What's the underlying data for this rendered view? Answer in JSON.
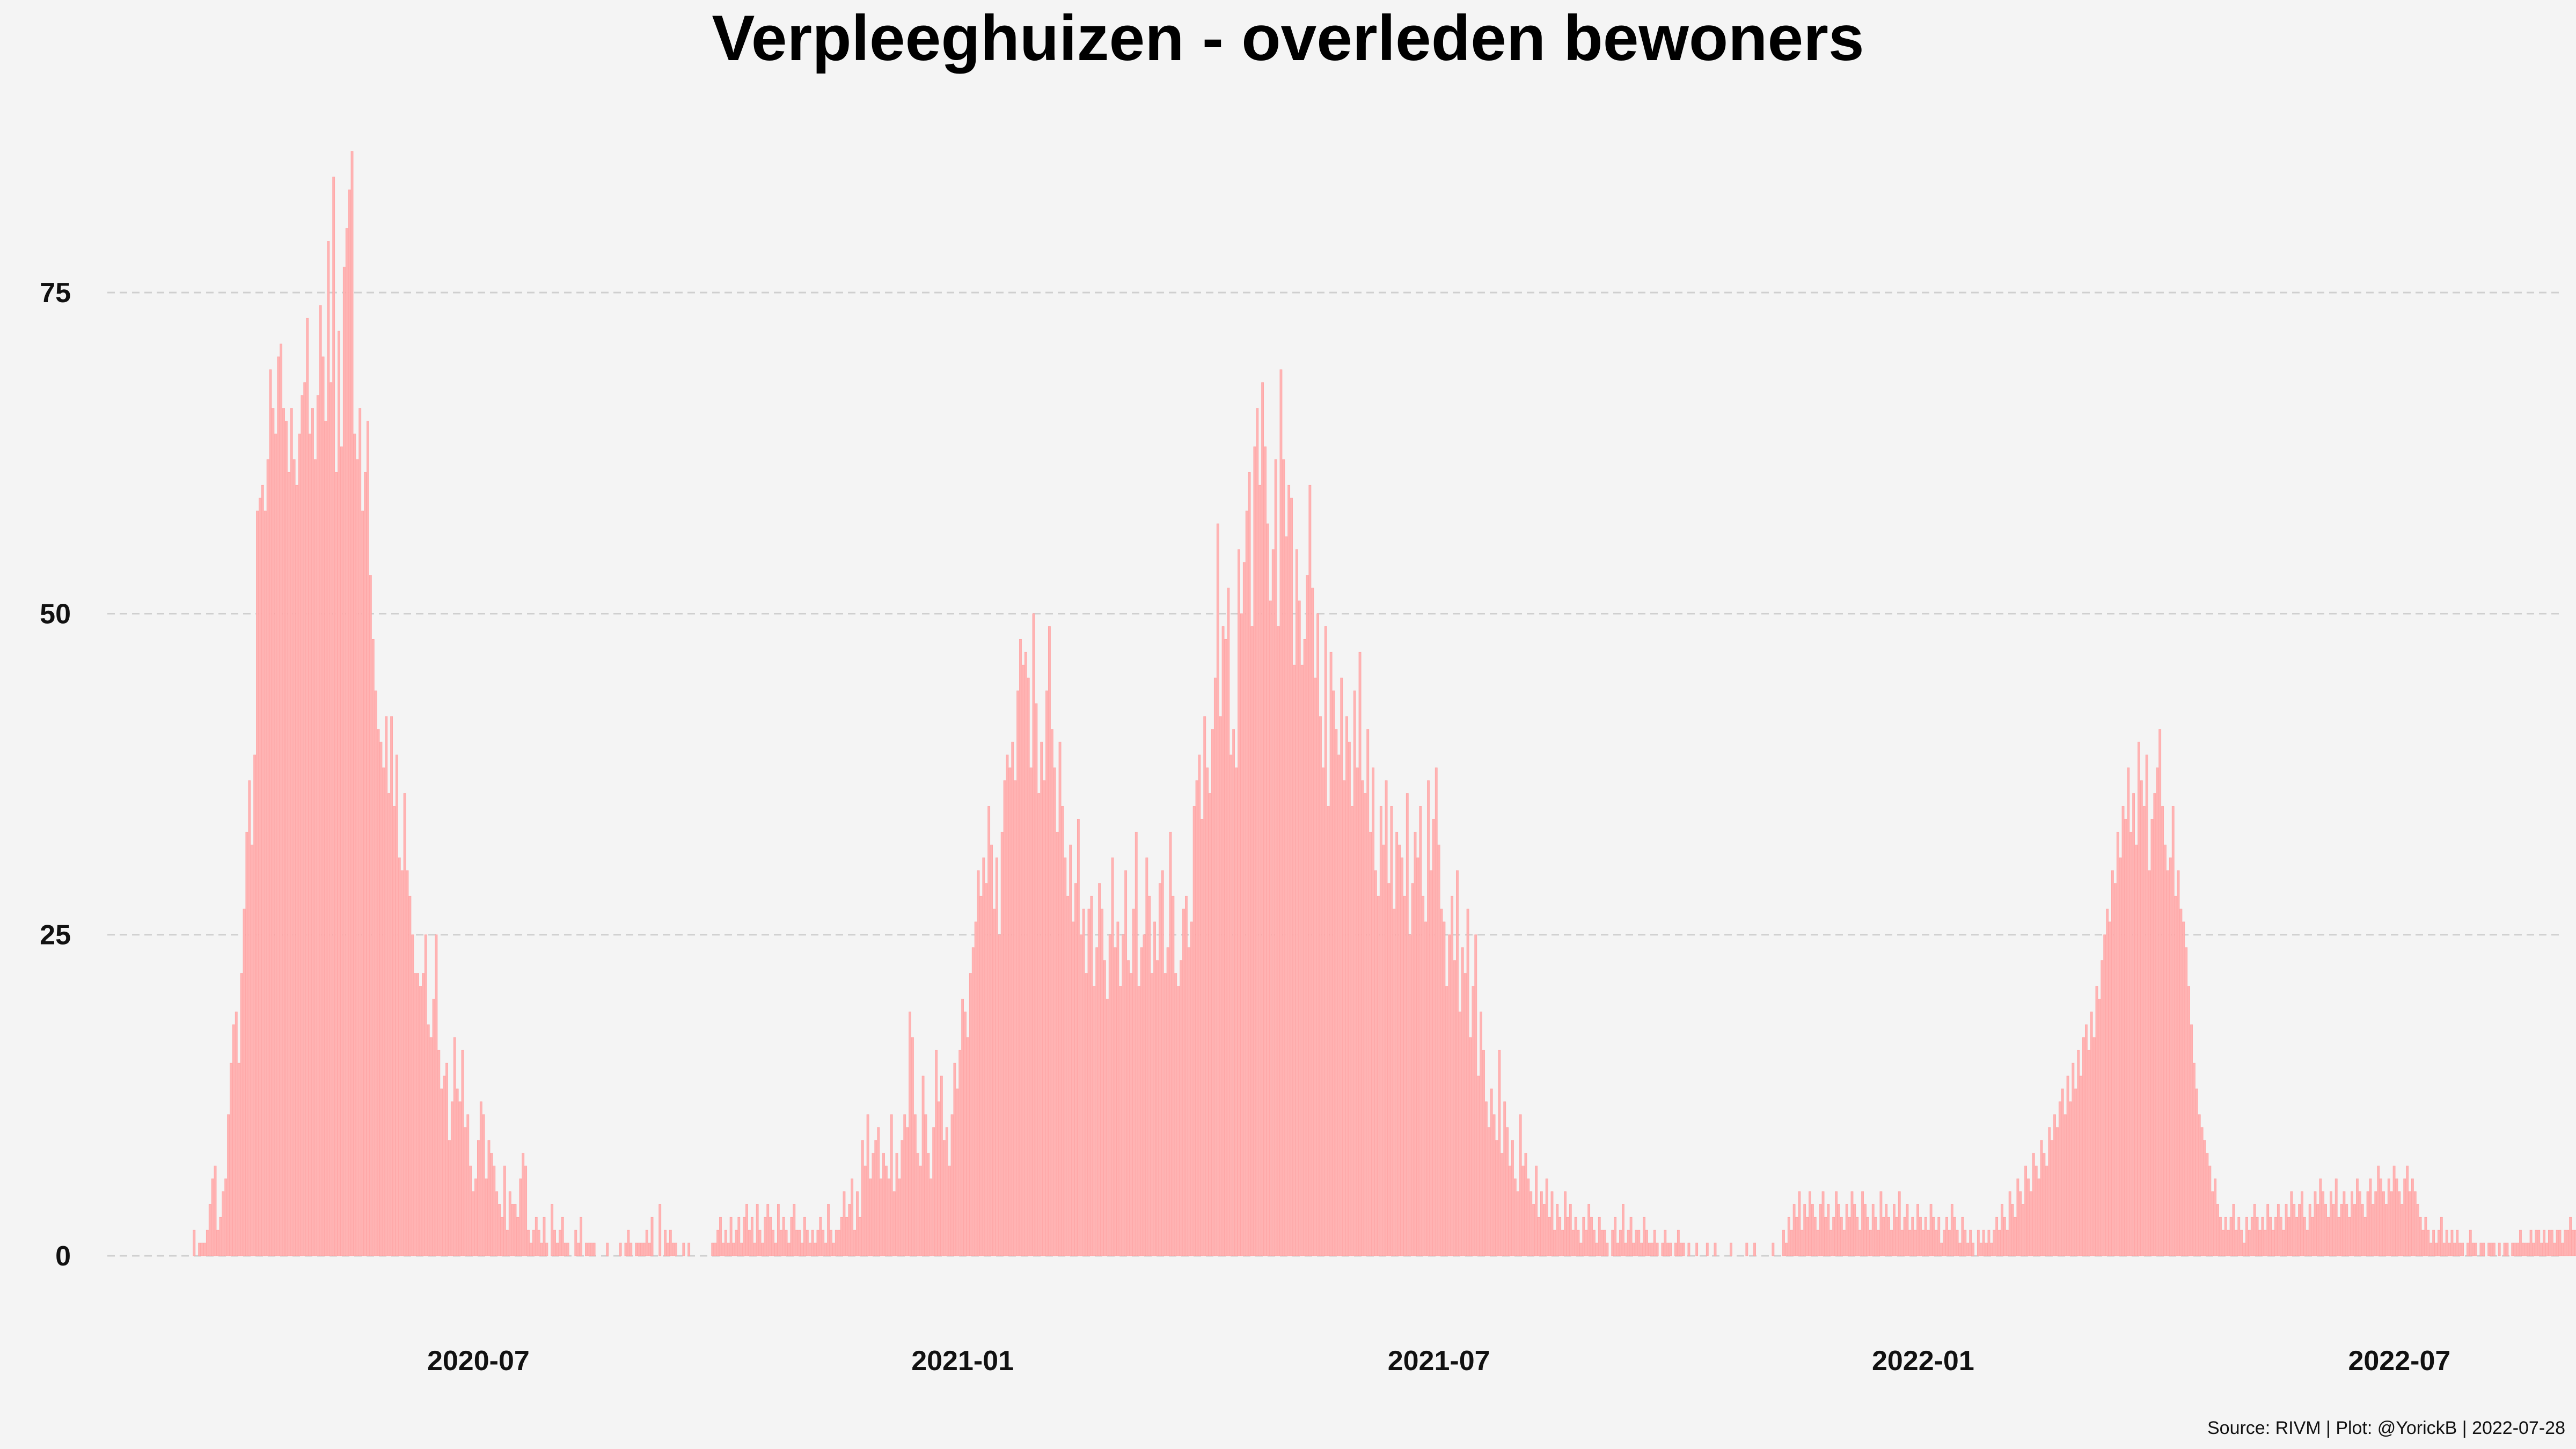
{
  "chart_data": {
    "type": "bar",
    "title": "Verpleeghuizen - overleden bewoners",
    "caption": "Source: RIVM | Plot: @YorickB |  2022-07-28",
    "xlabel": "",
    "ylabel": "",
    "x_start": "2020-03-15",
    "x_end": "2022-07-27",
    "x_domain": [
      "2020-02-11",
      "2022-08-31"
    ],
    "ylim": [
      0,
      87
    ],
    "y_ticks": [
      "0",
      "25",
      "50",
      "75"
    ],
    "x_ticks": [
      "2020-07",
      "2021-01",
      "2021-07",
      "2022-01",
      "2022-07"
    ],
    "grid": "horizontal",
    "legend": "none",
    "colors": {
      "background": "#f4f4f4",
      "bar_fill": "#ffb3b3",
      "bar_edge": "#ff9e9e",
      "grid": "#cfcfcf"
    },
    "values": [
      2,
      0,
      1,
      1,
      1,
      2,
      4,
      6,
      7,
      2,
      3,
      5,
      6,
      11,
      15,
      18,
      19,
      15,
      22,
      27,
      33,
      37,
      32,
      39,
      58,
      59,
      60,
      58,
      62,
      69,
      66,
      64,
      70,
      71,
      66,
      65,
      61,
      66,
      62,
      60,
      64,
      67,
      68,
      73,
      64,
      66,
      62,
      67,
      74,
      70,
      65,
      79,
      68,
      84,
      61,
      72,
      63,
      77,
      80,
      83,
      86,
      64,
      62,
      66,
      58,
      61,
      65,
      53,
      48,
      44,
      41,
      40,
      38,
      42,
      36,
      42,
      35,
      39,
      31,
      30,
      36,
      30,
      28,
      25,
      22,
      22,
      21,
      22,
      25,
      18,
      17,
      20,
      25,
      16,
      13,
      14,
      15,
      9,
      12,
      17,
      13,
      12,
      16,
      10,
      11,
      7,
      5,
      6,
      9,
      12,
      11,
      6,
      9,
      8,
      7,
      5,
      4,
      3,
      7,
      2,
      5,
      4,
      4,
      3,
      6,
      8,
      7,
      2,
      1,
      2,
      3,
      2,
      1,
      3,
      1,
      0,
      4,
      2,
      1,
      2,
      3,
      1,
      1,
      0,
      0,
      2,
      1,
      3,
      0,
      1,
      1,
      1,
      1,
      0,
      0,
      0,
      0,
      1,
      0,
      0,
      0,
      0,
      1,
      0,
      1,
      2,
      1,
      0,
      1,
      1,
      1,
      1,
      2,
      1,
      3,
      0,
      0,
      4,
      0,
      2,
      1,
      2,
      1,
      1,
      0,
      0,
      1,
      0,
      1,
      0,
      0,
      0,
      0,
      0,
      0,
      0,
      0,
      1,
      1,
      2,
      3,
      1,
      2,
      1,
      3,
      1,
      2,
      3,
      1,
      3,
      4,
      2,
      3,
      1,
      4,
      2,
      1,
      3,
      4,
      3,
      2,
      1,
      4,
      2,
      3,
      2,
      1,
      3,
      4,
      2,
      2,
      1,
      3,
      2,
      1,
      2,
      1,
      2,
      3,
      2,
      1,
      4,
      2,
      1,
      2,
      2,
      3,
      5,
      3,
      4,
      6,
      2,
      5,
      3,
      9,
      7,
      11,
      6,
      8,
      9,
      10,
      6,
      8,
      7,
      6,
      11,
      5,
      8,
      6,
      9,
      11,
      10,
      19,
      17,
      11,
      8,
      7,
      14,
      11,
      8,
      6,
      10,
      16,
      12,
      14,
      9,
      10,
      7,
      11,
      15,
      13,
      16,
      20,
      19,
      17,
      22,
      24,
      26,
      30,
      28,
      31,
      29,
      35,
      32,
      27,
      31,
      25,
      33,
      37,
      39,
      38,
      40,
      37,
      44,
      48,
      46,
      47,
      45,
      38,
      50,
      43,
      36,
      40,
      37,
      44,
      49,
      41,
      38,
      33,
      40,
      35,
      31,
      28,
      32,
      26,
      29,
      34,
      25,
      27,
      22,
      27,
      28,
      21,
      24,
      29,
      27,
      23,
      20,
      25,
      31,
      24,
      26,
      21,
      25,
      30,
      23,
      22,
      27,
      33,
      21,
      24,
      25,
      31,
      28,
      22,
      26,
      23,
      29,
      30,
      22,
      24,
      33,
      28,
      22,
      21,
      23,
      27,
      28,
      24,
      26,
      35,
      37,
      39,
      34,
      42,
      38,
      36,
      41,
      45,
      57,
      42,
      49,
      48,
      52,
      39,
      41,
      38,
      55,
      50,
      54,
      58,
      61,
      49,
      63,
      66,
      60,
      68,
      63,
      57,
      51,
      55,
      62,
      49,
      69,
      62,
      56,
      60,
      59,
      46,
      55,
      51,
      46,
      48,
      53,
      60,
      52,
      45,
      50,
      42,
      38,
      49,
      35,
      47,
      44,
      41,
      39,
      45,
      37,
      42,
      40,
      35,
      44,
      38,
      47,
      37,
      36,
      41,
      33,
      38,
      30,
      28,
      35,
      32,
      37,
      29,
      35,
      27,
      33,
      32,
      31,
      28,
      36,
      25,
      29,
      33,
      31,
      35,
      28,
      26,
      37,
      30,
      34,
      38,
      32,
      27,
      26,
      21,
      25,
      28,
      23,
      30,
      19,
      24,
      22,
      27,
      17,
      21,
      25,
      14,
      19,
      16,
      12,
      10,
      13,
      11,
      9,
      16,
      8,
      12,
      10,
      7,
      9,
      6,
      5,
      11,
      7,
      8,
      6,
      5,
      4,
      7,
      3,
      5,
      4,
      6,
      3,
      5,
      2,
      4,
      3,
      2,
      5,
      3,
      4,
      2,
      3,
      2,
      1,
      3,
      2,
      4,
      3,
      2,
      1,
      3,
      2,
      2,
      1,
      0,
      2,
      3,
      1,
      2,
      4,
      1,
      2,
      3,
      1,
      2,
      2,
      1,
      3,
      2,
      1,
      1,
      2,
      1,
      0,
      1,
      2,
      1,
      1,
      0,
      1,
      2,
      1,
      1,
      0,
      1,
      0,
      0,
      1,
      0,
      0,
      0,
      1,
      0,
      0,
      1,
      0,
      0,
      0,
      0,
      0,
      1,
      0,
      0,
      0,
      0,
      0,
      1,
      0,
      0,
      1,
      0,
      0,
      0,
      0,
      0,
      0,
      1,
      0,
      0,
      0,
      2,
      1,
      3,
      2,
      4,
      3,
      5,
      2,
      4,
      3,
      5,
      4,
      3,
      2,
      4,
      5,
      3,
      4,
      2,
      3,
      5,
      4,
      3,
      2,
      4,
      3,
      5,
      4,
      3,
      2,
      5,
      4,
      3,
      2,
      4,
      3,
      2,
      5,
      3,
      4,
      3,
      2,
      4,
      3,
      5,
      2,
      3,
      4,
      2,
      3,
      2,
      4,
      3,
      2,
      3,
      2,
      4,
      3,
      2,
      3,
      1,
      2,
      3,
      2,
      4,
      3,
      2,
      1,
      3,
      2,
      1,
      2,
      1,
      0,
      2,
      1,
      2,
      1,
      2,
      1,
      2,
      3,
      2,
      4,
      3,
      2,
      5,
      4,
      3,
      6,
      5,
      4,
      7,
      6,
      5,
      8,
      7,
      6,
      9,
      8,
      7,
      10,
      9,
      11,
      10,
      12,
      13,
      11,
      14,
      12,
      15,
      13,
      16,
      14,
      17,
      18,
      16,
      19,
      17,
      21,
      20,
      23,
      25,
      27,
      26,
      30,
      29,
      33,
      31,
      35,
      34,
      38,
      33,
      36,
      32,
      40,
      37,
      35,
      39,
      30,
      34,
      36,
      38,
      41,
      35,
      32,
      30,
      31,
      35,
      28,
      30,
      27,
      26,
      24,
      21,
      18,
      15,
      13,
      11,
      10,
      9,
      8,
      7,
      5,
      6,
      4,
      3,
      2,
      3,
      2,
      3,
      4,
      2,
      3,
      2,
      1,
      3,
      2,
      3,
      4,
      3,
      2,
      3,
      2,
      4,
      3,
      2,
      3,
      4,
      3,
      2,
      4,
      3,
      5,
      4,
      3,
      4,
      5,
      3,
      2,
      4,
      3,
      5,
      4,
      6,
      5,
      4,
      3,
      5,
      4,
      6,
      3,
      4,
      5,
      4,
      3,
      5,
      4,
      6,
      5,
      4,
      3,
      5,
      6,
      4,
      5,
      7,
      6,
      5,
      4,
      6,
      5,
      7,
      6,
      5,
      4,
      6,
      7,
      5,
      6,
      5,
      4,
      3,
      2,
      3,
      2,
      1,
      2,
      1,
      2,
      3,
      1,
      2,
      1,
      2,
      1,
      2,
      1,
      1,
      0,
      1,
      2,
      1,
      1,
      0,
      1,
      1,
      0,
      1,
      1,
      1,
      0,
      1,
      0,
      1,
      1,
      0,
      1,
      1,
      1,
      2,
      1,
      1,
      1,
      2,
      1,
      2,
      2,
      1,
      2,
      1,
      2,
      2,
      1,
      2,
      2,
      1,
      2,
      2,
      3,
      2,
      2,
      1,
      2,
      3,
      2,
      2,
      1,
      2,
      2,
      3,
      2,
      2,
      1,
      2,
      2,
      1
    ]
  }
}
